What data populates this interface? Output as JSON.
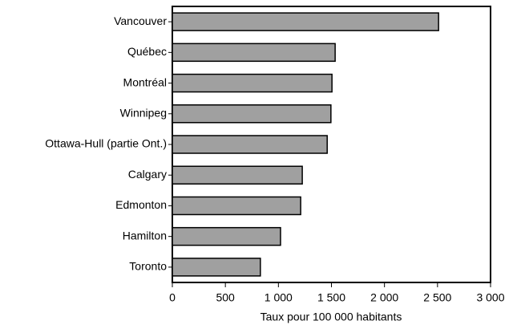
{
  "chart_data": {
    "type": "barh",
    "categories": [
      "Vancouver",
      "Québec",
      "Montréal",
      "Winnipeg",
      "Ottawa-Hull (partie Ont.)",
      "Calgary",
      "Edmonton",
      "Hamilton",
      "Toronto"
    ],
    "values": [
      2510,
      1535,
      1505,
      1495,
      1460,
      1225,
      1210,
      1020,
      830
    ],
    "color": "#a0a0a0",
    "xlabel": "Taux pour 100 000 habitants",
    "xlim": [
      0,
      3000
    ],
    "xticks": [
      0,
      500,
      {
        "value": 1000,
        "label": "1 000"
      },
      {
        "value": 1500,
        "label": "1 500"
      },
      {
        "value": 2000,
        "label": "2 000"
      },
      {
        "value": 2500,
        "label": "2 500"
      },
      {
        "value": 3000,
        "label": "3 000"
      }
    ],
    "grid": false
  }
}
